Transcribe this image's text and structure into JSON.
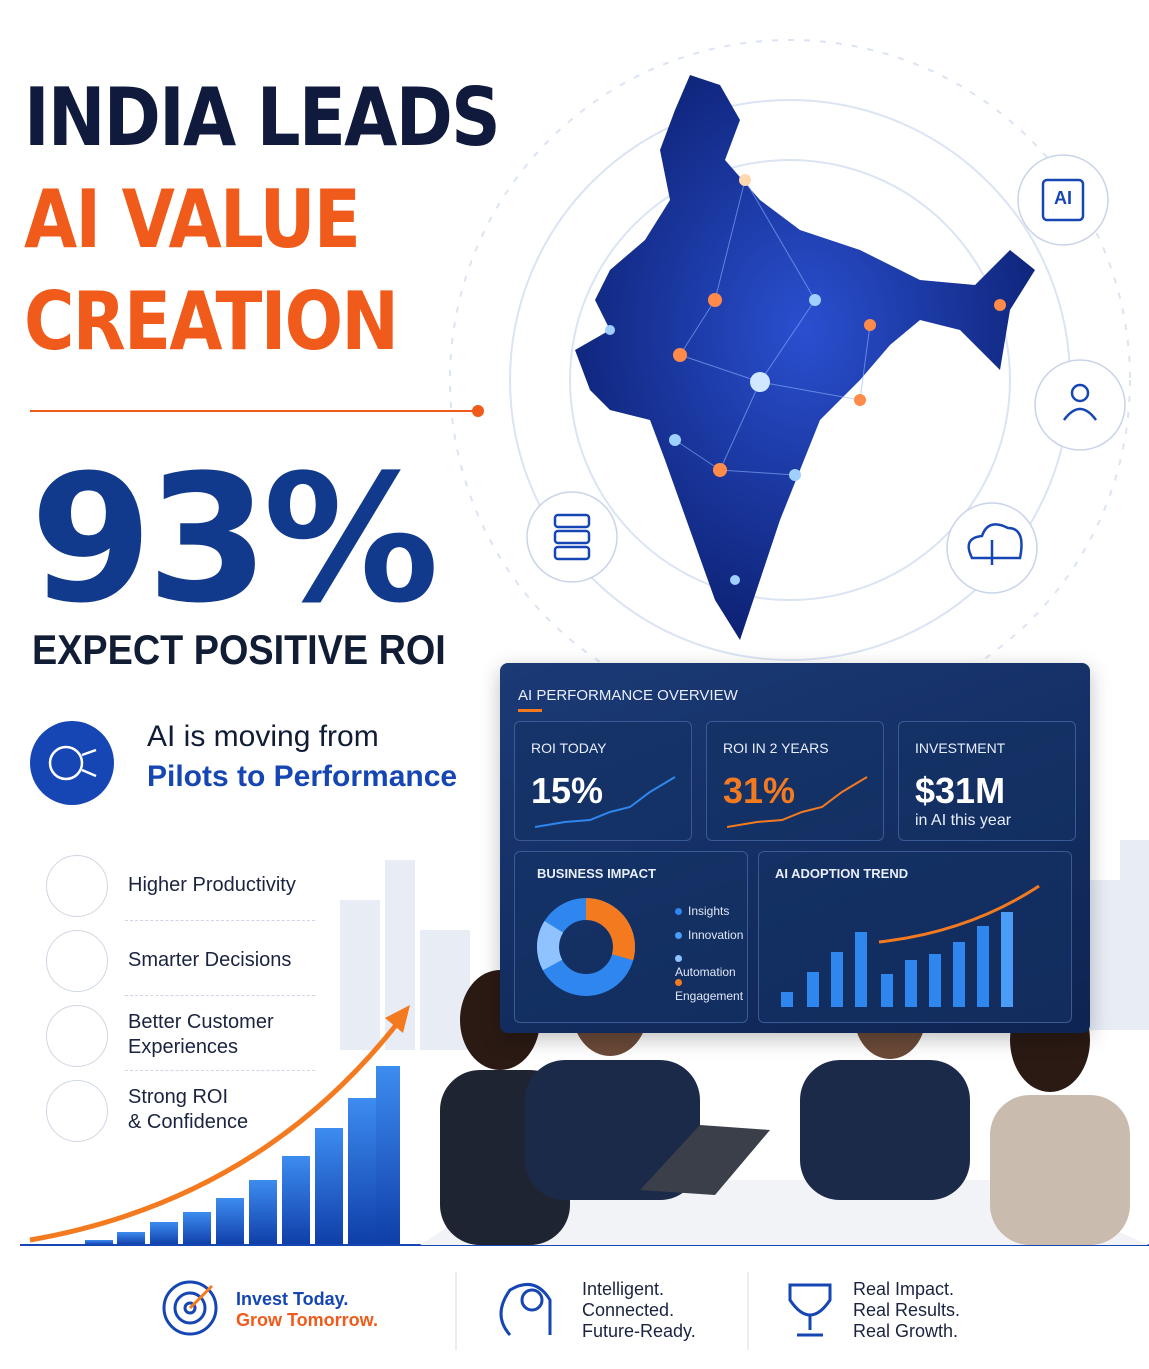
{
  "header": {
    "title_lines": [
      "INDIA LEADS",
      "AI VALUE",
      "CREATION"
    ]
  },
  "headline": {
    "stat": "93%",
    "caption": "EXPECT POSITIVE ROI"
  },
  "tagline": {
    "line1": "AI is moving from",
    "line2": "Pilots to Performance"
  },
  "benefits": [
    {
      "lines": [
        "Higher Productivity"
      ]
    },
    {
      "lines": [
        "Smarter Decisions"
      ]
    },
    {
      "lines": [
        "Better Customer",
        "Experiences"
      ]
    },
    {
      "lines": [
        "Strong ROI",
        "& Confidence"
      ]
    }
  ],
  "map_icons": {
    "chip": "AI"
  },
  "dashboard": {
    "title": "AI PERFORMANCE OVERVIEW",
    "cards": [
      {
        "label": "ROI TODAY",
        "value": "15%"
      },
      {
        "label": "ROI IN 2 YEARS",
        "value": "31%"
      },
      {
        "label": "INVESTMENT",
        "value": "$31M",
        "note": "in AI this year"
      }
    ],
    "business_impact": {
      "title": "BUSINESS IMPACT",
      "legend": [
        "Insights",
        "Innovation",
        "Automation",
        "Engagement"
      ]
    },
    "adoption": {
      "title": "AI ADOPTION TREND"
    }
  },
  "footer": [
    {
      "lines": [
        "Invest Today.",
        "Grow Tomorrow."
      ]
    },
    {
      "lines": [
        "Intelligent.",
        "Connected.",
        "Future-Ready."
      ]
    },
    {
      "lines": [
        "Real Impact.",
        "Real Results.",
        "Real Growth."
      ]
    }
  ]
}
